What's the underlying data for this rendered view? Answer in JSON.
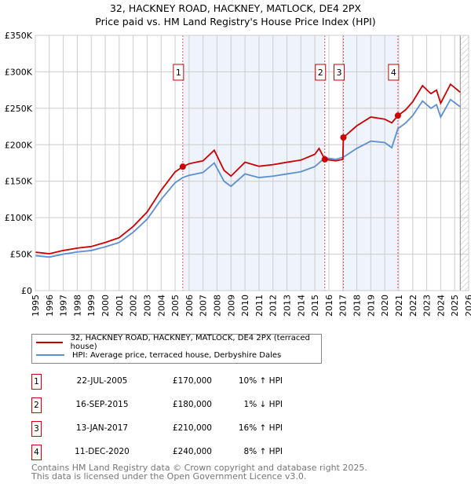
{
  "chart_data": {
    "type": "line",
    "title": "32, HACKNEY ROAD, HACKNEY, MATLOCK, DE4 2PX",
    "subtitle": "Price paid vs. HM Land Registry's House Price Index (HPI)",
    "xlim": [
      1995,
      2026
    ],
    "ylim": [
      0,
      350000
    ],
    "yticks": [
      {
        "v": 0,
        "label": "£0"
      },
      {
        "v": 50000,
        "label": "£50K"
      },
      {
        "v": 100000,
        "label": "£100K"
      },
      {
        "v": 150000,
        "label": "£150K"
      },
      {
        "v": 200000,
        "label": "£200K"
      },
      {
        "v": 250000,
        "label": "£250K"
      },
      {
        "v": 300000,
        "label": "£300K"
      },
      {
        "v": 350000,
        "label": "£350K"
      }
    ],
    "xticks": [
      "1995",
      "1996",
      "1997",
      "1998",
      "1999",
      "2000",
      "2001",
      "2002",
      "2003",
      "2004",
      "2005",
      "2006",
      "2007",
      "2008",
      "2009",
      "2010",
      "2011",
      "2012",
      "2013",
      "2014",
      "2015",
      "2016",
      "2017",
      "2018",
      "2019",
      "2020",
      "2021",
      "2022",
      "2023",
      "2024",
      "2025",
      "2026"
    ],
    "grid": true,
    "series": [
      {
        "name": "32, HACKNEY ROAD, HACKNEY, MATLOCK, DE4 2PX (terraced house)",
        "color": "#cc0000",
        "x": [
          1995,
          1996,
          1997,
          1998,
          1999,
          2000,
          2001,
          2002,
          2003,
          2004,
          2005,
          2005.55,
          2006,
          2007,
          2007.8,
          2008.5,
          2009,
          2010,
          2011,
          2012,
          2013,
          2014,
          2015,
          2015.3,
          2015.71,
          2016.5,
          2017.0,
          2017.04,
          2018,
          2019,
          2020,
          2020.5,
          2020.94,
          2021.5,
          2022,
          2022.7,
          2023.3,
          2023.7,
          2024,
          2024.7,
          2025.4
        ],
        "y": [
          52800,
          50600,
          55000,
          58300,
          60500,
          66000,
          72600,
          88000,
          107800,
          137500,
          162800,
          170000,
          174000,
          178000,
          192500,
          165000,
          157000,
          176000,
          170500,
          172700,
          176000,
          179000,
          187000,
          195000,
          180000,
          178000,
          180000,
          210000,
          226000,
          238000,
          235000,
          230000,
          240000,
          248000,
          259000,
          281000,
          270000,
          275000,
          257000,
          283000,
          272000
        ]
      },
      {
        "name": "HPI: Average price, terraced house, Derbyshire Dales",
        "color": "#5b8fd1",
        "x": [
          1995,
          1996,
          1997,
          1998,
          1999,
          2000,
          2001,
          2002,
          2003,
          2004,
          2005,
          2005.55,
          2006,
          2007,
          2007.8,
          2008.5,
          2009,
          2010,
          2011,
          2012,
          2013,
          2014,
          2015,
          2015.71,
          2016.5,
          2017.04,
          2018,
          2019,
          2020,
          2020.5,
          2020.94,
          2021.5,
          2022,
          2022.7,
          2023.3,
          2023.7,
          2024,
          2024.7,
          2025.4
        ],
        "y": [
          48000,
          46000,
          50000,
          53000,
          55000,
          60000,
          66000,
          80000,
          98000,
          125000,
          148000,
          155000,
          158000,
          162000,
          175000,
          150000,
          143000,
          160000,
          155000,
          157000,
          160000,
          163000,
          170000,
          182000,
          180000,
          183000,
          195000,
          205000,
          203000,
          196000,
          222000,
          230000,
          240000,
          260000,
          250000,
          255000,
          238000,
          262000,
          252000
        ]
      }
    ],
    "shaded_ranges": [
      [
        2005.55,
        2015.71
      ],
      [
        2017.04,
        2020.94
      ]
    ],
    "hatched_from": 2025.4,
    "sales": [
      {
        "n": "1",
        "x": 2005.55,
        "date": "22-JUL-2005",
        "price": 170000,
        "price_label": "£170,000",
        "hpi": "10% ↑ HPI"
      },
      {
        "n": "2",
        "x": 2015.71,
        "date": "16-SEP-2015",
        "price": 180000,
        "price_label": "£180,000",
        "hpi": "1% ↓ HPI"
      },
      {
        "n": "3",
        "x": 2017.04,
        "date": "13-JAN-2017",
        "price": 210000,
        "price_label": "£210,000",
        "hpi": "16% ↑ HPI"
      },
      {
        "n": "4",
        "x": 2020.94,
        "date": "11-DEC-2020",
        "price": 240000,
        "price_label": "£240,000",
        "hpi": "8% ↑ HPI"
      }
    ]
  },
  "footer": {
    "line1": "Contains HM Land Registry data © Crown copyright and database right 2025.",
    "line2": "This data is licensed under the Open Government Licence v3.0."
  }
}
